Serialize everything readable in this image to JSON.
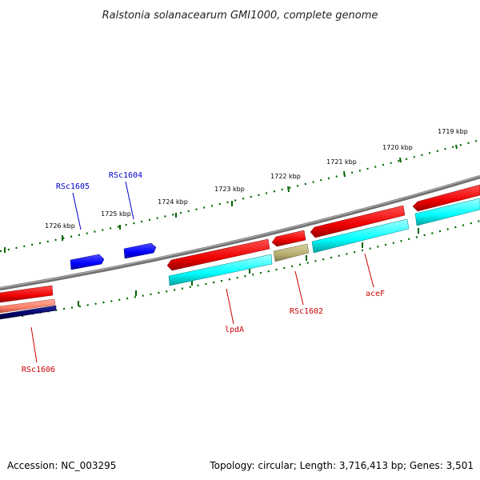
{
  "title": "Ralstonia solanacearum GMI1000, complete genome",
  "accession_label": "Accession: NC_003295",
  "summary_label": "Topology: circular; Length: 3,716,413 bp; Genes: 3,501",
  "tick_labels": [
    "1719 kbp",
    "1720 kbp",
    "1721 kbp",
    "1722 kbp",
    "1723 kbp",
    "1724 kbp",
    "1725 kbp",
    "1726 kbp"
  ],
  "gene_labels": {
    "rsc1605": "RSc1605",
    "rsc1604": "RSc1604",
    "lpda": "lpdA",
    "rsc1602": "RSc1602",
    "acef": "aceF",
    "rsc1606": "RSc1606"
  },
  "colors": {
    "label_blue": "#0000cc",
    "label_red": "#cc0000",
    "gene_blue": "#0000ff",
    "gene_red": "#ff0000",
    "gene_salmon": "#ff7f6a",
    "gene_navy": "#000066",
    "cds_cyan": "#00ffff",
    "cds_khaki": "#b5ad6e",
    "backbone": "#808080",
    "tick_green": "#006400"
  }
}
